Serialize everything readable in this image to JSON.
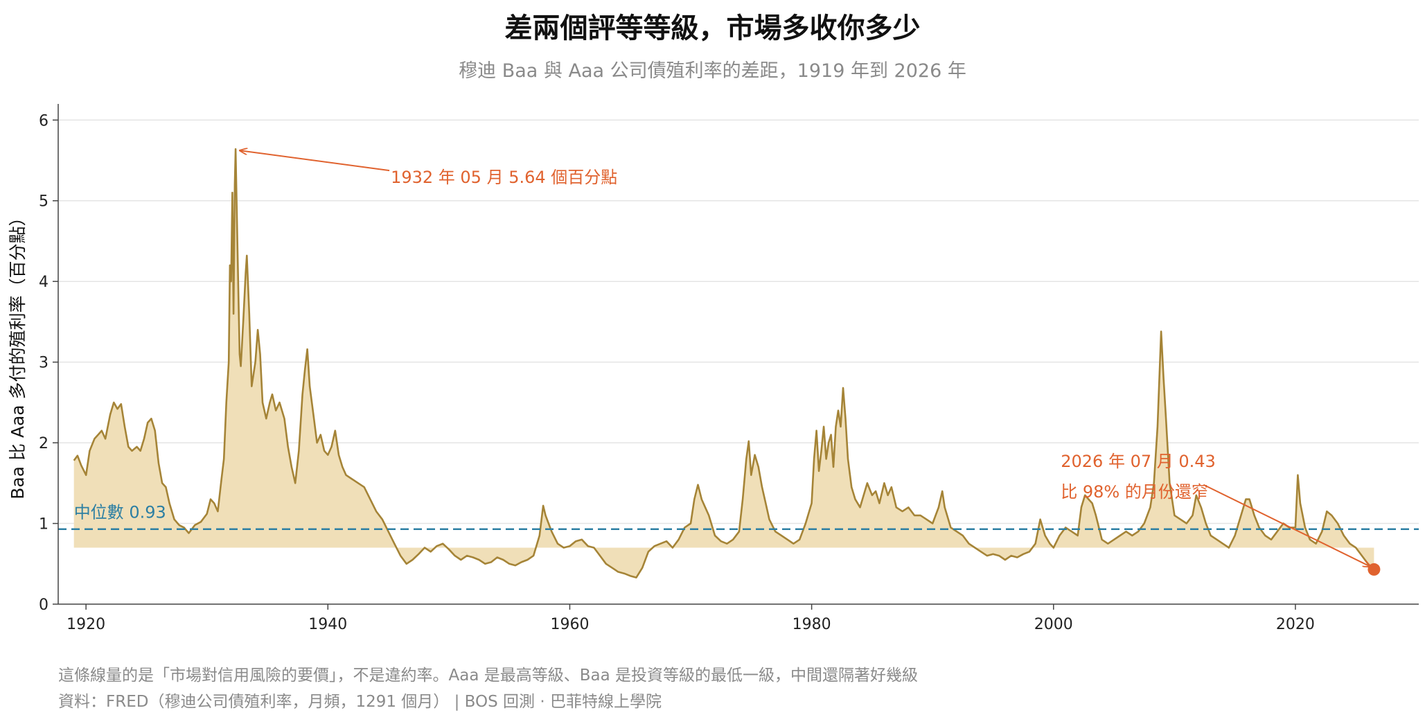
{
  "title": "差兩個評等等級，市場多收你多少",
  "subtitle": "穆迪 Baa 與 Aaa 公司債殖利率的差距，1919 年到 2026 年",
  "notes": {
    "line1": "這條線量的是「市場對信用風險的要價」，不是違約率。Aaa 是最高等級、Baa 是投資等級的最低一級，中間還隔著好幾級",
    "line2": "資料：FRED（穆迪公司債殖利率，月頻，1291 個月） | BOS 回測 · 巴菲特線上學院"
  },
  "chart_data": {
    "type": "area",
    "title": "差兩個評等等級，市場多收你多少",
    "xlabel": "",
    "ylabel": "Baa 比 Aaa 多付的殖利率（百分點）",
    "xlim": [
      1917.7,
      2030.2
    ],
    "ylim": [
      0,
      6.2
    ],
    "x_ticks": [
      1920,
      1940,
      1960,
      1980,
      2000,
      2020
    ],
    "y_ticks": [
      0,
      1,
      2,
      3,
      4,
      5,
      6
    ],
    "grid": "horizontal",
    "fill_baseline": 0.7,
    "colors": {
      "line": "#a58437",
      "fill": "#f0dfb8",
      "median": "#2c7fa3",
      "annotation": "#e0622e",
      "title": "#111111",
      "subtitle": "#8a8a8a"
    },
    "median": {
      "value": 0.93,
      "label": "中位數 0.93"
    },
    "annotations": [
      {
        "label": "1932 年 05 月  5.64 個百分點",
        "x": 1932.37,
        "y": 5.64,
        "text_x": 1945.2,
        "text_y": 5.22
      },
      {
        "label_line1": "2026 年 07 月  0.43",
        "label_line2": "比 98% 的月份還窄",
        "x": 2026.5,
        "y": 0.43,
        "text_x": 2000.6,
        "text_y": 1.77
      }
    ],
    "series": [
      {
        "points": [
          [
            1919.0,
            1.78
          ],
          [
            1919.3,
            1.84
          ],
          [
            1919.6,
            1.72
          ],
          [
            1920.0,
            1.6
          ],
          [
            1920.3,
            1.9
          ],
          [
            1920.7,
            2.05
          ],
          [
            1921.0,
            2.1
          ],
          [
            1921.3,
            2.15
          ],
          [
            1921.6,
            2.05
          ],
          [
            1922.0,
            2.35
          ],
          [
            1922.3,
            2.5
          ],
          [
            1922.6,
            2.42
          ],
          [
            1922.9,
            2.48
          ],
          [
            1923.2,
            2.2
          ],
          [
            1923.5,
            1.95
          ],
          [
            1923.8,
            1.9
          ],
          [
            1924.2,
            1.95
          ],
          [
            1924.5,
            1.9
          ],
          [
            1924.8,
            2.05
          ],
          [
            1925.1,
            2.25
          ],
          [
            1925.4,
            2.3
          ],
          [
            1925.7,
            2.15
          ],
          [
            1926.0,
            1.75
          ],
          [
            1926.3,
            1.5
          ],
          [
            1926.6,
            1.45
          ],
          [
            1926.9,
            1.25
          ],
          [
            1927.3,
            1.05
          ],
          [
            1927.7,
            0.98
          ],
          [
            1928.1,
            0.95
          ],
          [
            1928.5,
            0.88
          ],
          [
            1929.0,
            0.98
          ],
          [
            1929.5,
            1.02
          ],
          [
            1930.0,
            1.12
          ],
          [
            1930.3,
            1.3
          ],
          [
            1930.6,
            1.25
          ],
          [
            1930.9,
            1.15
          ],
          [
            1931.2,
            1.55
          ],
          [
            1931.4,
            1.8
          ],
          [
            1931.6,
            2.5
          ],
          [
            1931.8,
            3.0
          ],
          [
            1931.9,
            4.2
          ],
          [
            1932.0,
            4.0
          ],
          [
            1932.1,
            5.1
          ],
          [
            1932.2,
            3.6
          ],
          [
            1932.3,
            5.2
          ],
          [
            1932.37,
            5.64
          ],
          [
            1932.5,
            4.6
          ],
          [
            1932.7,
            3.1
          ],
          [
            1932.8,
            2.95
          ],
          [
            1933.0,
            3.5
          ],
          [
            1933.2,
            4.1
          ],
          [
            1933.3,
            4.32
          ],
          [
            1933.5,
            3.6
          ],
          [
            1933.7,
            2.7
          ],
          [
            1934.0,
            3.0
          ],
          [
            1934.2,
            3.4
          ],
          [
            1934.4,
            3.1
          ],
          [
            1934.6,
            2.5
          ],
          [
            1934.9,
            2.3
          ],
          [
            1935.2,
            2.5
          ],
          [
            1935.4,
            2.6
          ],
          [
            1935.7,
            2.4
          ],
          [
            1936.0,
            2.5
          ],
          [
            1936.4,
            2.3
          ],
          [
            1936.7,
            1.95
          ],
          [
            1937.0,
            1.7
          ],
          [
            1937.3,
            1.5
          ],
          [
            1937.6,
            1.9
          ],
          [
            1937.9,
            2.6
          ],
          [
            1938.1,
            2.9
          ],
          [
            1938.3,
            3.16
          ],
          [
            1938.5,
            2.7
          ],
          [
            1938.8,
            2.35
          ],
          [
            1939.1,
            2.0
          ],
          [
            1939.4,
            2.1
          ],
          [
            1939.7,
            1.9
          ],
          [
            1940.0,
            1.85
          ],
          [
            1940.3,
            1.95
          ],
          [
            1940.6,
            2.15
          ],
          [
            1940.9,
            1.85
          ],
          [
            1941.2,
            1.7
          ],
          [
            1941.5,
            1.6
          ],
          [
            1942.0,
            1.55
          ],
          [
            1942.5,
            1.5
          ],
          [
            1943.0,
            1.45
          ],
          [
            1943.5,
            1.3
          ],
          [
            1944.0,
            1.15
          ],
          [
            1944.5,
            1.05
          ],
          [
            1945.0,
            0.9
          ],
          [
            1945.5,
            0.75
          ],
          [
            1946.0,
            0.6
          ],
          [
            1946.5,
            0.5
          ],
          [
            1947.0,
            0.55
          ],
          [
            1947.5,
            0.62
          ],
          [
            1948.0,
            0.7
          ],
          [
            1948.5,
            0.65
          ],
          [
            1949.0,
            0.72
          ],
          [
            1949.5,
            0.75
          ],
          [
            1950.0,
            0.68
          ],
          [
            1950.5,
            0.6
          ],
          [
            1951.0,
            0.55
          ],
          [
            1951.5,
            0.6
          ],
          [
            1952.0,
            0.58
          ],
          [
            1952.5,
            0.55
          ],
          [
            1953.0,
            0.5
          ],
          [
            1953.5,
            0.52
          ],
          [
            1954.0,
            0.58
          ],
          [
            1954.5,
            0.55
          ],
          [
            1955.0,
            0.5
          ],
          [
            1955.5,
            0.48
          ],
          [
            1956.0,
            0.52
          ],
          [
            1956.5,
            0.55
          ],
          [
            1957.0,
            0.6
          ],
          [
            1957.5,
            0.85
          ],
          [
            1957.8,
            1.22
          ],
          [
            1958.0,
            1.1
          ],
          [
            1958.5,
            0.9
          ],
          [
            1959.0,
            0.75
          ],
          [
            1959.5,
            0.7
          ],
          [
            1960.0,
            0.72
          ],
          [
            1960.5,
            0.78
          ],
          [
            1961.0,
            0.8
          ],
          [
            1961.5,
            0.72
          ],
          [
            1962.0,
            0.7
          ],
          [
            1962.5,
            0.6
          ],
          [
            1963.0,
            0.5
          ],
          [
            1963.5,
            0.45
          ],
          [
            1964.0,
            0.4
          ],
          [
            1964.5,
            0.38
          ],
          [
            1965.0,
            0.35
          ],
          [
            1965.5,
            0.33
          ],
          [
            1966.0,
            0.45
          ],
          [
            1966.5,
            0.65
          ],
          [
            1967.0,
            0.72
          ],
          [
            1967.5,
            0.75
          ],
          [
            1968.0,
            0.78
          ],
          [
            1968.5,
            0.7
          ],
          [
            1969.0,
            0.8
          ],
          [
            1969.5,
            0.95
          ],
          [
            1970.0,
            1.0
          ],
          [
            1970.3,
            1.3
          ],
          [
            1970.6,
            1.48
          ],
          [
            1970.9,
            1.3
          ],
          [
            1971.2,
            1.2
          ],
          [
            1971.5,
            1.1
          ],
          [
            1972.0,
            0.85
          ],
          [
            1972.5,
            0.78
          ],
          [
            1973.0,
            0.75
          ],
          [
            1973.5,
            0.8
          ],
          [
            1974.0,
            0.9
          ],
          [
            1974.3,
            1.3
          ],
          [
            1974.6,
            1.8
          ],
          [
            1974.8,
            2.02
          ],
          [
            1975.0,
            1.6
          ],
          [
            1975.3,
            1.85
          ],
          [
            1975.6,
            1.7
          ],
          [
            1975.9,
            1.45
          ],
          [
            1976.2,
            1.25
          ],
          [
            1976.5,
            1.05
          ],
          [
            1977.0,
            0.9
          ],
          [
            1977.5,
            0.85
          ],
          [
            1978.0,
            0.8
          ],
          [
            1978.5,
            0.75
          ],
          [
            1979.0,
            0.8
          ],
          [
            1979.5,
            1.0
          ],
          [
            1980.0,
            1.25
          ],
          [
            1980.2,
            1.8
          ],
          [
            1980.4,
            2.15
          ],
          [
            1980.6,
            1.65
          ],
          [
            1980.8,
            1.9
          ],
          [
            1981.0,
            2.2
          ],
          [
            1981.2,
            1.8
          ],
          [
            1981.4,
            2.0
          ],
          [
            1981.6,
            2.1
          ],
          [
            1981.8,
            1.7
          ],
          [
            1982.0,
            2.2
          ],
          [
            1982.2,
            2.4
          ],
          [
            1982.4,
            2.2
          ],
          [
            1982.6,
            2.68
          ],
          [
            1982.8,
            2.3
          ],
          [
            1983.0,
            1.8
          ],
          [
            1983.3,
            1.45
          ],
          [
            1983.6,
            1.3
          ],
          [
            1984.0,
            1.2
          ],
          [
            1984.3,
            1.35
          ],
          [
            1984.6,
            1.5
          ],
          [
            1985.0,
            1.35
          ],
          [
            1985.3,
            1.4
          ],
          [
            1985.6,
            1.25
          ],
          [
            1986.0,
            1.5
          ],
          [
            1986.3,
            1.35
          ],
          [
            1986.6,
            1.45
          ],
          [
            1987.0,
            1.2
          ],
          [
            1987.5,
            1.15
          ],
          [
            1988.0,
            1.2
          ],
          [
            1988.5,
            1.1
          ],
          [
            1989.0,
            1.1
          ],
          [
            1989.5,
            1.05
          ],
          [
            1990.0,
            1.0
          ],
          [
            1990.5,
            1.2
          ],
          [
            1990.8,
            1.4
          ],
          [
            1991.0,
            1.2
          ],
          [
            1991.5,
            0.95
          ],
          [
            1992.0,
            0.9
          ],
          [
            1992.5,
            0.85
          ],
          [
            1993.0,
            0.75
          ],
          [
            1993.5,
            0.7
          ],
          [
            1994.0,
            0.65
          ],
          [
            1994.5,
            0.6
          ],
          [
            1995.0,
            0.62
          ],
          [
            1995.5,
            0.6
          ],
          [
            1996.0,
            0.55
          ],
          [
            1996.5,
            0.6
          ],
          [
            1997.0,
            0.58
          ],
          [
            1997.5,
            0.62
          ],
          [
            1998.0,
            0.65
          ],
          [
            1998.5,
            0.75
          ],
          [
            1998.9,
            1.05
          ],
          [
            1999.3,
            0.85
          ],
          [
            1999.7,
            0.75
          ],
          [
            2000.0,
            0.7
          ],
          [
            2000.5,
            0.85
          ],
          [
            2001.0,
            0.95
          ],
          [
            2001.5,
            0.9
          ],
          [
            2002.0,
            0.85
          ],
          [
            2002.3,
            1.2
          ],
          [
            2002.6,
            1.35
          ],
          [
            2002.9,
            1.3
          ],
          [
            2003.2,
            1.25
          ],
          [
            2003.5,
            1.1
          ],
          [
            2004.0,
            0.8
          ],
          [
            2004.5,
            0.75
          ],
          [
            2005.0,
            0.8
          ],
          [
            2005.5,
            0.85
          ],
          [
            2006.0,
            0.9
          ],
          [
            2006.5,
            0.85
          ],
          [
            2007.0,
            0.9
          ],
          [
            2007.5,
            1.0
          ],
          [
            2008.0,
            1.2
          ],
          [
            2008.3,
            1.5
          ],
          [
            2008.6,
            2.2
          ],
          [
            2008.9,
            3.38
          ],
          [
            2009.1,
            2.8
          ],
          [
            2009.3,
            2.3
          ],
          [
            2009.6,
            1.5
          ],
          [
            2010.0,
            1.1
          ],
          [
            2010.5,
            1.05
          ],
          [
            2011.0,
            1.0
          ],
          [
            2011.5,
            1.1
          ],
          [
            2011.8,
            1.35
          ],
          [
            2012.2,
            1.2
          ],
          [
            2012.6,
            1.0
          ],
          [
            2013.0,
            0.85
          ],
          [
            2013.5,
            0.8
          ],
          [
            2014.0,
            0.75
          ],
          [
            2014.5,
            0.7
          ],
          [
            2015.0,
            0.85
          ],
          [
            2015.5,
            1.1
          ],
          [
            2015.9,
            1.3
          ],
          [
            2016.2,
            1.3
          ],
          [
            2016.6,
            1.1
          ],
          [
            2017.0,
            0.95
          ],
          [
            2017.5,
            0.85
          ],
          [
            2018.0,
            0.8
          ],
          [
            2018.5,
            0.9
          ],
          [
            2019.0,
            1.0
          ],
          [
            2019.5,
            0.95
          ],
          [
            2020.0,
            0.95
          ],
          [
            2020.2,
            1.6
          ],
          [
            2020.4,
            1.25
          ],
          [
            2020.8,
            0.95
          ],
          [
            2021.2,
            0.8
          ],
          [
            2021.7,
            0.75
          ],
          [
            2022.2,
            0.9
          ],
          [
            2022.6,
            1.15
          ],
          [
            2023.0,
            1.1
          ],
          [
            2023.5,
            1.0
          ],
          [
            2024.0,
            0.85
          ],
          [
            2024.5,
            0.75
          ],
          [
            2025.0,
            0.7
          ],
          [
            2025.5,
            0.6
          ],
          [
            2026.0,
            0.5
          ],
          [
            2026.5,
            0.43
          ]
        ]
      }
    ]
  }
}
